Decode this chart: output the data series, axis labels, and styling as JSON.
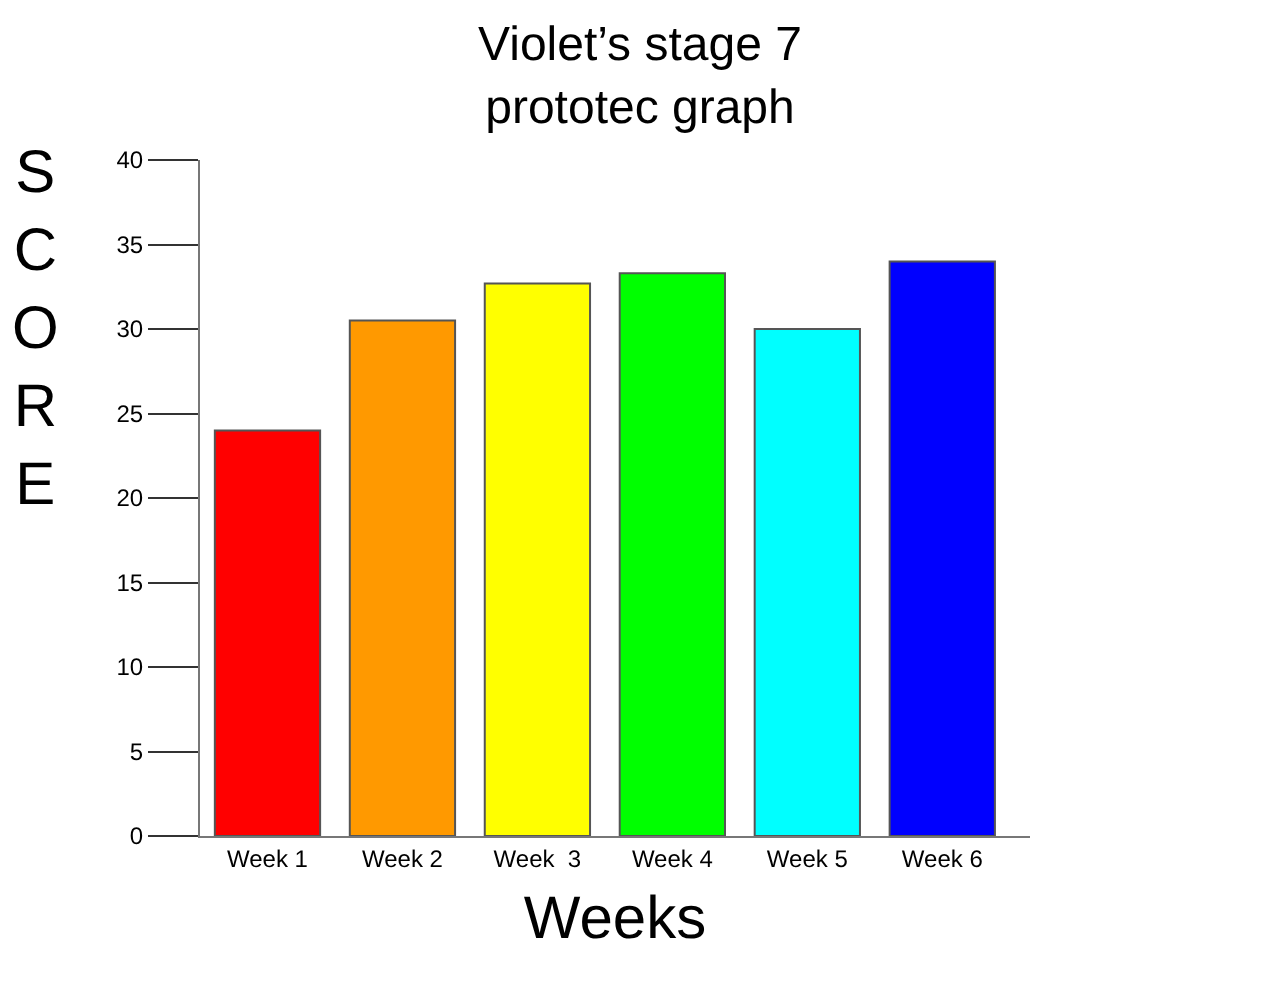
{
  "chart_data": {
    "type": "bar",
    "title": "Violet’s stage 7\nprototec graph",
    "xlabel": "Weeks",
    "ylabel": "SCORE",
    "categories": [
      "Week 1",
      "Week 2",
      "Week  3",
      "Week 4",
      "Week 5",
      "Week 6"
    ],
    "values": [
      24,
      30.5,
      32.7,
      33.3,
      30,
      34
    ],
    "colors": [
      "#ff0000",
      "#ff9900",
      "#ffff00",
      "#00ff00",
      "#00ffff",
      "#0000ff"
    ],
    "ylim": [
      0,
      40
    ],
    "yticks": [
      0,
      5,
      10,
      15,
      20,
      25,
      30,
      35,
      40
    ],
    "grid": false
  }
}
